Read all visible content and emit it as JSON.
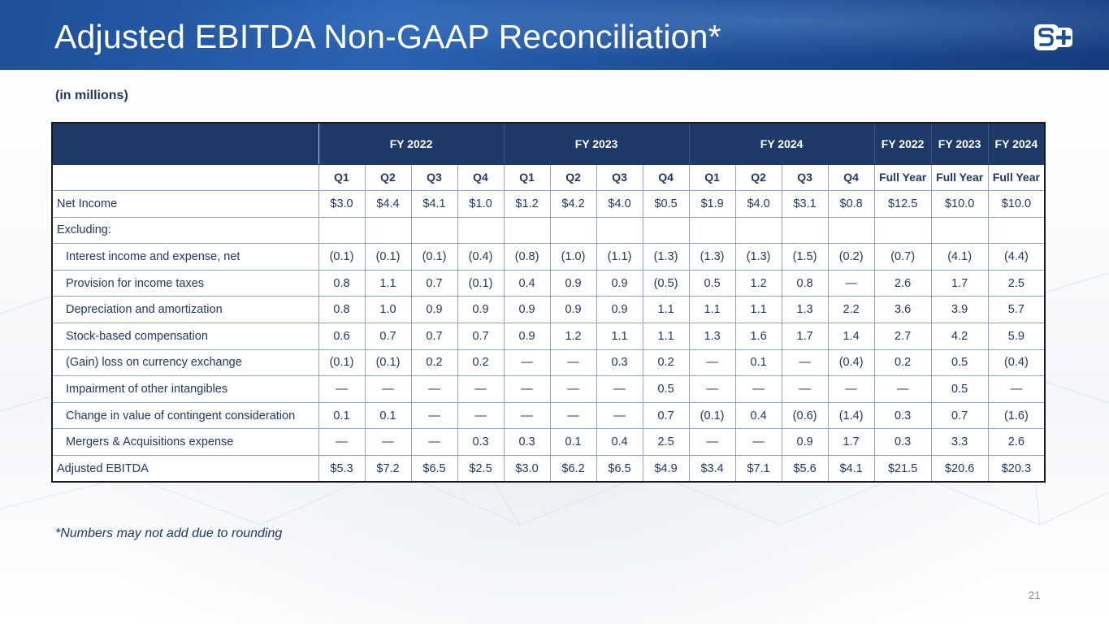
{
  "slide": {
    "title": "Adjusted EBITDA Non-GAAP Reconciliation*",
    "subtitle": "(in millions)",
    "footnote": "*Numbers may not add due to rounding",
    "page_number": "21",
    "logo_text": "S+"
  },
  "table": {
    "groups": [
      "FY 2022",
      "FY 2023",
      "FY 2024",
      "FY 2022",
      "FY 2023",
      "FY 2024"
    ],
    "periods": [
      "Q1",
      "Q2",
      "Q3",
      "Q4",
      "Q1",
      "Q2",
      "Q3",
      "Q4",
      "Q1",
      "Q2",
      "Q3",
      "Q4",
      "Full Year",
      "Full Year",
      "Full Year"
    ],
    "rows": [
      {
        "label": "Net Income",
        "values": [
          "$3.0",
          "$4.4",
          "$4.1",
          "$1.0",
          "$1.2",
          "$4.2",
          "$4.0",
          "$0.5",
          "$1.9",
          "$4.0",
          "$3.1",
          "$0.8",
          "$12.5",
          "$10.0",
          "$10.0"
        ]
      },
      {
        "label": "Excluding:",
        "values": [
          "",
          "",
          "",
          "",
          "",
          "",
          "",
          "",
          "",
          "",
          "",
          "",
          "",
          "",
          ""
        ]
      },
      {
        "label": "Interest income and expense, net",
        "values": [
          "(0.1)",
          "(0.1)",
          "(0.1)",
          "(0.4)",
          "(0.8)",
          "(1.0)",
          "(1.1)",
          "(1.3)",
          "(1.3)",
          "(1.3)",
          "(1.5)",
          "(0.2)",
          "(0.7)",
          "(4.1)",
          "(4.4)"
        ]
      },
      {
        "label": "Provision for income taxes",
        "values": [
          "0.8",
          "1.1",
          "0.7",
          "(0.1)",
          "0.4",
          "0.9",
          "0.9",
          "(0.5)",
          "0.5",
          "1.2",
          "0.8",
          "—",
          "2.6",
          "1.7",
          "2.5"
        ]
      },
      {
        "label": "Depreciation and amortization",
        "values": [
          "0.8",
          "1.0",
          "0.9",
          "0.9",
          "0.9",
          "0.9",
          "0.9",
          "1.1",
          "1.1",
          "1.1",
          "1.3",
          "2.2",
          "3.6",
          "3.9",
          "5.7"
        ]
      },
      {
        "label": "Stock-based compensation",
        "values": [
          "0.6",
          "0.7",
          "0.7",
          "0.7",
          "0.9",
          "1.2",
          "1.1",
          "1.1",
          "1.3",
          "1.6",
          "1.7",
          "1.4",
          "2.7",
          "4.2",
          "5.9"
        ]
      },
      {
        "label": "(Gain) loss on currency exchange",
        "values": [
          "(0.1)",
          "(0.1)",
          "0.2",
          "0.2",
          "—",
          "—",
          "0.3",
          "0.2",
          "—",
          "0.1",
          "—",
          "(0.4)",
          "0.2",
          "0.5",
          "(0.4)"
        ]
      },
      {
        "label": "Impairment of other intangibles",
        "values": [
          "—",
          "—",
          "—",
          "—",
          "—",
          "—",
          "—",
          "0.5",
          "—",
          "—",
          "—",
          "—",
          "—",
          "0.5",
          "—"
        ]
      },
      {
        "label": "Change in value of contingent consideration",
        "values": [
          "0.1",
          "0.1",
          "—",
          "—",
          "—",
          "—",
          "—",
          "0.7",
          "(0.1)",
          "0.4",
          "(0.6)",
          "(1.4)",
          "0.3",
          "0.7",
          "(1.6)"
        ]
      },
      {
        "label": "Mergers & Acquisitions expense",
        "values": [
          "—",
          "—",
          "—",
          "0.3",
          "0.3",
          "0.1",
          "0.4",
          "2.5",
          "—",
          "—",
          "0.9",
          "1.7",
          "0.3",
          "3.3",
          "2.6"
        ]
      },
      {
        "label": "Adjusted EBITDA",
        "values": [
          "$5.3",
          "$7.2",
          "$6.5",
          "$2.5",
          "$3.0",
          "$6.2",
          "$6.5",
          "$4.9",
          "$3.4",
          "$7.1",
          "$5.6",
          "$4.1",
          "$21.5",
          "$20.6",
          "$20.3"
        ]
      }
    ]
  },
  "colors": {
    "header_band": "#1f4f97",
    "table_header": "#1f3a68",
    "text_navy": "#1f3864"
  }
}
